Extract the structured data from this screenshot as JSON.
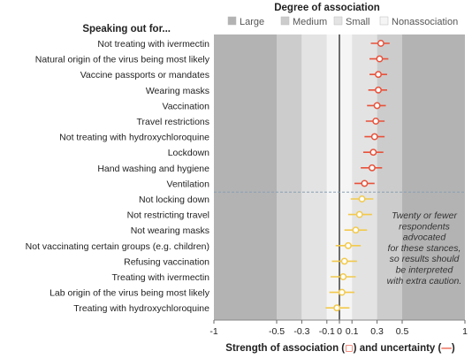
{
  "chart_data": {
    "type": "forest",
    "title": "Degree of association",
    "row_header": "Speaking out for...",
    "xlabel_prefix": "Strength of association (",
    "xlabel_mid": ") and uncertainty (",
    "xlabel_suffix": ")",
    "xlim": [
      -1,
      1
    ],
    "ticks": [
      -1,
      -0.5,
      -0.3,
      -0.1,
      0,
      0.1,
      0.3,
      0.5,
      1
    ],
    "tick_labels": [
      "-1",
      "-0.5",
      "-0.3",
      "-0.1",
      "0",
      "0.1",
      "0.3",
      "0.5",
      "1"
    ],
    "bands": [
      {
        "name": "Large",
        "color": "#b3b3b3"
      },
      {
        "name": "Medium",
        "color": "#cccccc"
      },
      {
        "name": "Small",
        "color": "#e3e3e3"
      },
      {
        "name": "Nonassociation",
        "color": "#f5f5f5"
      }
    ],
    "band_edges": {
      "large": 0.5,
      "medium": 0.3,
      "small": 0.1
    },
    "colors": {
      "upper_point": "#e8513a",
      "lower_point": "#f2c94c",
      "zero_line": "#111111",
      "separator": "#8aa0b4"
    },
    "rows": [
      {
        "label": "Not treating with ivermectin",
        "value": 0.33,
        "lo": 0.25,
        "hi": 0.4,
        "group": "upper"
      },
      {
        "label": "Natural origin of the virus being most likely",
        "value": 0.32,
        "lo": 0.24,
        "hi": 0.39,
        "group": "upper"
      },
      {
        "label": "Vaccine passports or mandates",
        "value": 0.31,
        "lo": 0.24,
        "hi": 0.38,
        "group": "upper"
      },
      {
        "label": "Wearing masks",
        "value": 0.31,
        "lo": 0.23,
        "hi": 0.38,
        "group": "upper"
      },
      {
        "label": "Vaccination",
        "value": 0.3,
        "lo": 0.22,
        "hi": 0.37,
        "group": "upper"
      },
      {
        "label": "Travel restrictions",
        "value": 0.29,
        "lo": 0.21,
        "hi": 0.36,
        "group": "upper"
      },
      {
        "label": "Not treating with hydroxychloroquine",
        "value": 0.28,
        "lo": 0.2,
        "hi": 0.36,
        "group": "upper"
      },
      {
        "label": "Lockdown",
        "value": 0.27,
        "lo": 0.19,
        "hi": 0.35,
        "group": "upper"
      },
      {
        "label": "Hand washing and hygiene",
        "value": 0.26,
        "lo": 0.17,
        "hi": 0.34,
        "group": "upper"
      },
      {
        "label": "Ventilation",
        "value": 0.2,
        "lo": 0.12,
        "hi": 0.28,
        "group": "upper"
      },
      {
        "label": "Not locking down",
        "value": 0.18,
        "lo": 0.09,
        "hi": 0.27,
        "group": "lower"
      },
      {
        "label": "Not restricting travel",
        "value": 0.16,
        "lo": 0.07,
        "hi": 0.26,
        "group": "lower"
      },
      {
        "label": "Not wearing masks",
        "value": 0.13,
        "lo": 0.04,
        "hi": 0.22,
        "group": "lower"
      },
      {
        "label": "Not vaccinating certain groups (e.g. children)",
        "value": 0.07,
        "lo": -0.03,
        "hi": 0.17,
        "group": "lower"
      },
      {
        "label": "Refusing vaccination",
        "value": 0.04,
        "lo": -0.06,
        "hi": 0.14,
        "group": "lower"
      },
      {
        "label": "Treating with ivermectin",
        "value": 0.03,
        "lo": -0.07,
        "hi": 0.13,
        "group": "lower"
      },
      {
        "label": "Lab origin of the virus being most likely",
        "value": 0.02,
        "lo": -0.08,
        "hi": 0.12,
        "group": "lower"
      },
      {
        "label": "Treating with hydroxychloroquine",
        "value": -0.02,
        "lo": -0.11,
        "hi": 0.08,
        "group": "lower"
      }
    ],
    "note_lines": [
      "Twenty or fewer",
      "respondents",
      "advocated",
      "for these stances,",
      "so results should",
      "be interpreted",
      "with extra caution."
    ]
  }
}
